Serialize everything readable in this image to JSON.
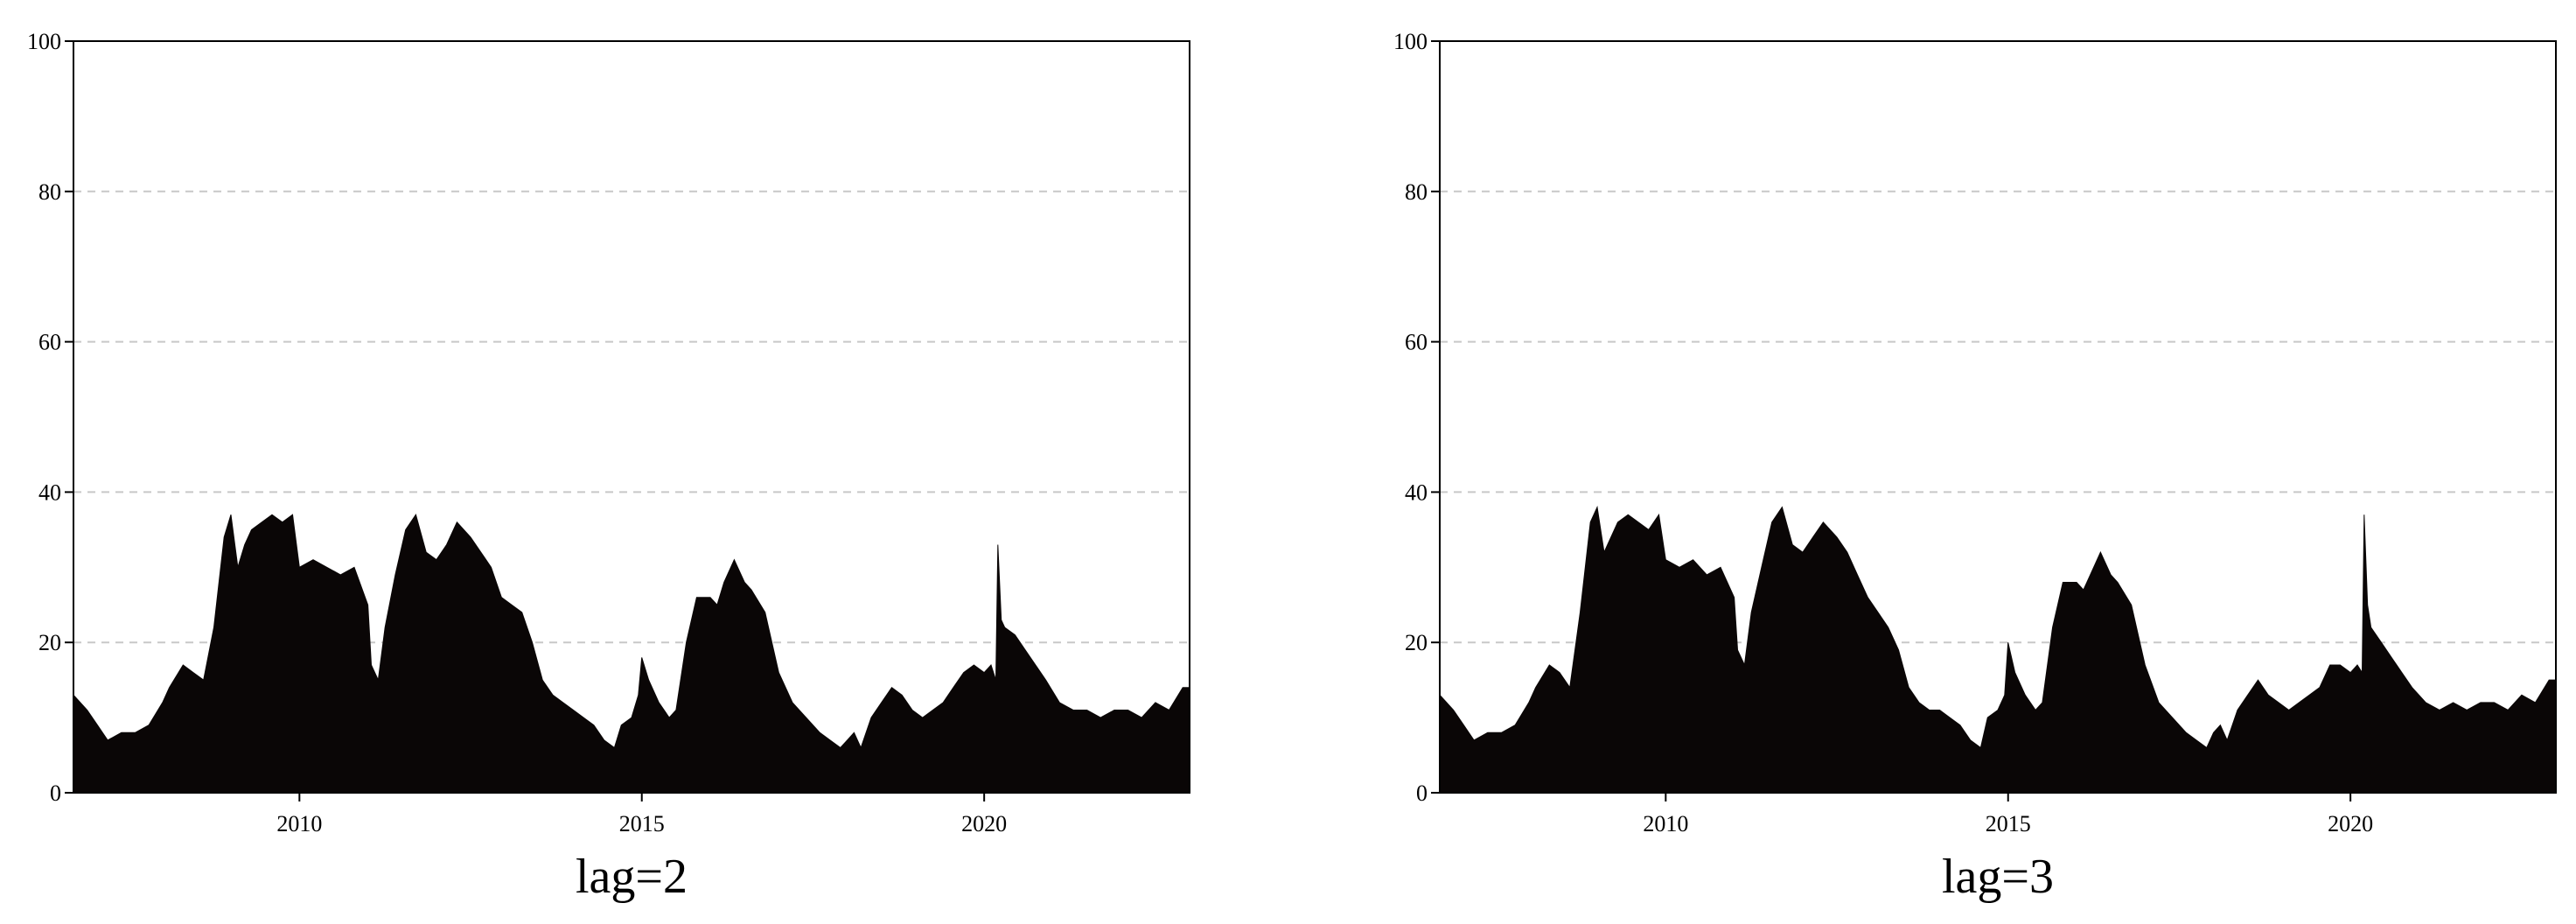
{
  "chart_data": [
    {
      "type": "area",
      "caption": "lag=2",
      "color": "#0a0606",
      "grid": "y-dashed",
      "xlim": [
        2006.7,
        2023.0
      ],
      "ylim": [
        0,
        100
      ],
      "yticks": [
        0,
        20,
        40,
        60,
        80,
        100
      ],
      "xticks": [
        2010,
        2015,
        2020
      ],
      "series": [
        {
          "x": [
            2006.7,
            2006.9,
            2007.05,
            2007.2,
            2007.4,
            2007.6,
            2007.8,
            2008.0,
            2008.1,
            2008.3,
            2008.45,
            2008.6,
            2008.75,
            2008.9,
            2009.0,
            2009.1,
            2009.2,
            2009.3,
            2009.45,
            2009.6,
            2009.75,
            2009.9,
            2010.0,
            2010.2,
            2010.4,
            2010.6,
            2010.8,
            2011.0,
            2011.05,
            2011.15,
            2011.25,
            2011.4,
            2011.55,
            2011.7,
            2011.85,
            2012.0,
            2012.15,
            2012.3,
            2012.5,
            2012.65,
            2012.8,
            2012.95,
            2013.1,
            2013.25,
            2013.4,
            2013.55,
            2013.7,
            2013.85,
            2014.0,
            2014.15,
            2014.3,
            2014.45,
            2014.6,
            2014.7,
            2014.85,
            2014.95,
            2015.0,
            2015.1,
            2015.25,
            2015.4,
            2015.5,
            2015.65,
            2015.8,
            2016.0,
            2016.1,
            2016.2,
            2016.35,
            2016.5,
            2016.6,
            2016.8,
            2017.0,
            2017.2,
            2017.4,
            2017.6,
            2017.75,
            2017.9,
            2018.0,
            2018.1,
            2018.2,
            2018.35,
            2018.5,
            2018.65,
            2018.8,
            2018.95,
            2019.1,
            2019.25,
            2019.4,
            2019.55,
            2019.7,
            2019.85,
            2020.0,
            2020.1,
            2020.17,
            2020.2,
            2020.25,
            2020.3,
            2020.45,
            2020.6,
            2020.75,
            2020.9,
            2021.1,
            2021.3,
            2021.5,
            2021.7,
            2021.9,
            2022.1,
            2022.3,
            2022.5,
            2022.7,
            2022.9,
            2023.0
          ],
          "y": [
            13,
            11,
            9,
            7,
            8,
            8,
            9,
            12,
            14,
            17,
            16,
            15,
            22,
            34,
            37,
            30,
            33,
            35,
            36,
            37,
            36,
            37,
            30,
            31,
            30,
            29,
            30,
            25,
            17,
            15,
            22,
            29,
            35,
            37,
            32,
            31,
            33,
            36,
            34,
            32,
            30,
            26,
            25,
            24,
            20,
            15,
            13,
            12,
            11,
            10,
            9,
            7,
            6,
            9,
            10,
            13,
            18,
            15,
            12,
            10,
            11,
            20,
            26,
            26,
            25,
            28,
            31,
            28,
            27,
            24,
            16,
            12,
            10,
            8,
            7,
            6,
            7,
            8,
            6,
            10,
            12,
            14,
            13,
            11,
            10,
            11,
            12,
            14,
            16,
            17,
            16,
            17,
            15,
            33,
            23,
            22,
            21,
            19,
            17,
            15,
            12,
            11,
            11,
            10,
            11,
            11,
            10,
            12,
            11,
            14,
            14
          ]
        }
      ]
    },
    {
      "type": "area",
      "caption": "lag=3",
      "color": "#0a0606",
      "grid": "y-dashed",
      "xlim": [
        2006.7,
        2023.0
      ],
      "ylim": [
        0,
        100
      ],
      "yticks": [
        0,
        20,
        40,
        60,
        80,
        100
      ],
      "xticks": [
        2010,
        2015,
        2020
      ],
      "series": [
        {
          "x": [
            2006.7,
            2006.9,
            2007.05,
            2007.2,
            2007.4,
            2007.6,
            2007.8,
            2008.0,
            2008.1,
            2008.3,
            2008.45,
            2008.6,
            2008.75,
            2008.9,
            2009.0,
            2009.1,
            2009.2,
            2009.3,
            2009.45,
            2009.6,
            2009.75,
            2009.9,
            2010.0,
            2010.2,
            2010.4,
            2010.6,
            2010.8,
            2011.0,
            2011.05,
            2011.15,
            2011.25,
            2011.4,
            2011.55,
            2011.7,
            2011.85,
            2012.0,
            2012.15,
            2012.3,
            2012.5,
            2012.65,
            2012.8,
            2012.95,
            2013.1,
            2013.25,
            2013.4,
            2013.55,
            2013.7,
            2013.85,
            2014.0,
            2014.15,
            2014.3,
            2014.45,
            2014.6,
            2014.7,
            2014.85,
            2014.95,
            2015.0,
            2015.1,
            2015.25,
            2015.4,
            2015.5,
            2015.65,
            2015.8,
            2016.0,
            2016.1,
            2016.2,
            2016.35,
            2016.5,
            2016.6,
            2016.8,
            2017.0,
            2017.2,
            2017.4,
            2017.6,
            2017.75,
            2017.9,
            2018.0,
            2018.1,
            2018.2,
            2018.35,
            2018.5,
            2018.65,
            2018.8,
            2018.95,
            2019.1,
            2019.25,
            2019.4,
            2019.55,
            2019.7,
            2019.85,
            2020.0,
            2020.1,
            2020.17,
            2020.2,
            2020.25,
            2020.3,
            2020.45,
            2020.6,
            2020.75,
            2020.9,
            2021.1,
            2021.3,
            2021.5,
            2021.7,
            2021.9,
            2022.1,
            2022.3,
            2022.5,
            2022.7,
            2022.9,
            2023.0
          ],
          "y": [
            13,
            11,
            9,
            7,
            8,
            8,
            9,
            12,
            14,
            17,
            16,
            14,
            24,
            36,
            38,
            32,
            34,
            36,
            37,
            36,
            35,
            37,
            31,
            30,
            31,
            29,
            30,
            26,
            19,
            17,
            24,
            30,
            36,
            38,
            33,
            32,
            34,
            36,
            34,
            32,
            29,
            26,
            24,
            22,
            19,
            14,
            12,
            11,
            11,
            10,
            9,
            7,
            6,
            10,
            11,
            13,
            20,
            16,
            13,
            11,
            12,
            22,
            28,
            28,
            27,
            29,
            32,
            29,
            28,
            25,
            17,
            12,
            10,
            8,
            7,
            6,
            8,
            9,
            7,
            11,
            13,
            15,
            13,
            12,
            11,
            12,
            13,
            14,
            17,
            17,
            16,
            17,
            16,
            37,
            25,
            22,
            20,
            18,
            16,
            14,
            12,
            11,
            12,
            11,
            12,
            12,
            11,
            13,
            12,
            15,
            15
          ]
        }
      ]
    }
  ]
}
